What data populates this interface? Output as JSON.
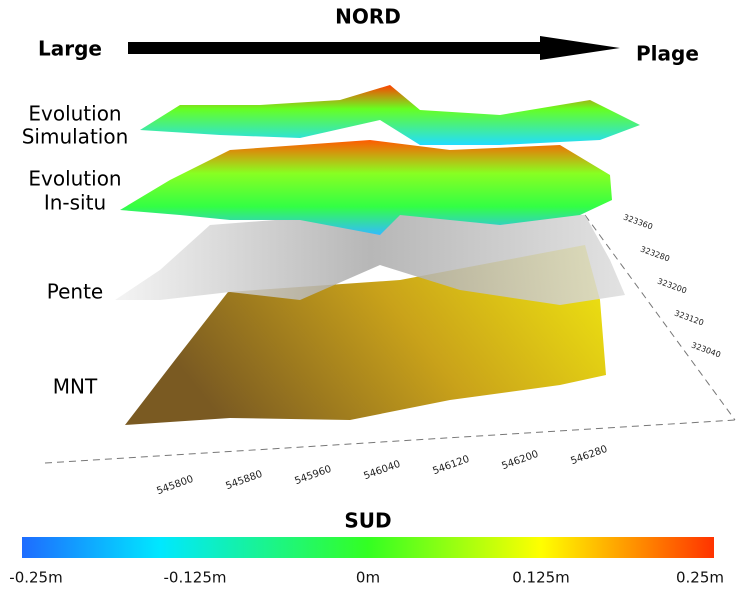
{
  "header": {
    "north": "NORD",
    "left": "Large",
    "right": "Plage"
  },
  "layers": [
    [
      "Evolution",
      "Simulation"
    ],
    [
      "Evolution",
      "In-situ"
    ],
    [
      "Pente"
    ],
    [
      "MNT"
    ]
  ],
  "x_axis": {
    "ticks": [
      "545800",
      "545880",
      "545960",
      "546040",
      "546120",
      "546200",
      "546280"
    ]
  },
  "y_axis": {
    "ticks": [
      "323360",
      "323280",
      "323200",
      "323120",
      "323040"
    ]
  },
  "colorbar": {
    "title": "SUD",
    "ticks": [
      "-0.25m",
      "-0.125m",
      "0m",
      "0.125m",
      "0.25m"
    ]
  }
}
